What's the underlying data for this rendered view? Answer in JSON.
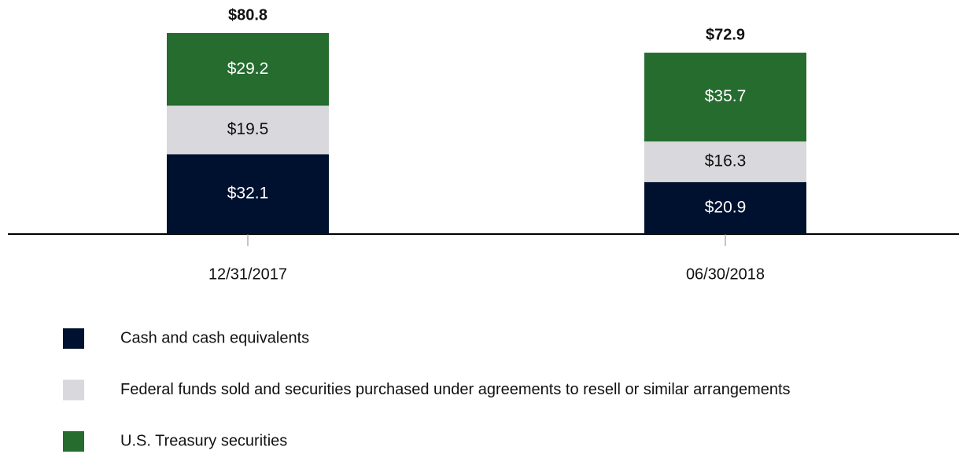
{
  "chart_data": {
    "type": "stacked-bar",
    "categories": [
      "12/31/2017",
      "06/30/2018"
    ],
    "series": [
      {
        "name": "Cash and cash equivalents",
        "color": "#00112f",
        "values": [
          32.1,
          20.9
        ],
        "value_labels": [
          "$32.1",
          "$20.9"
        ]
      },
      {
        "name": "Federal funds sold and securities purchased under agreements to resell or similar arrangements",
        "color": "#d9d8dc",
        "values": [
          19.5,
          16.3
        ],
        "value_labels": [
          "$19.5",
          "$16.3"
        ]
      },
      {
        "name": "U.S. Treasury securities",
        "color": "#256c2e",
        "values": [
          29.2,
          35.7
        ],
        "value_labels": [
          "$29.2",
          "$35.7"
        ]
      }
    ],
    "totals": [
      80.8,
      72.9
    ],
    "total_labels": [
      "$80.8",
      "$72.9"
    ],
    "legend": "bottom-left"
  }
}
